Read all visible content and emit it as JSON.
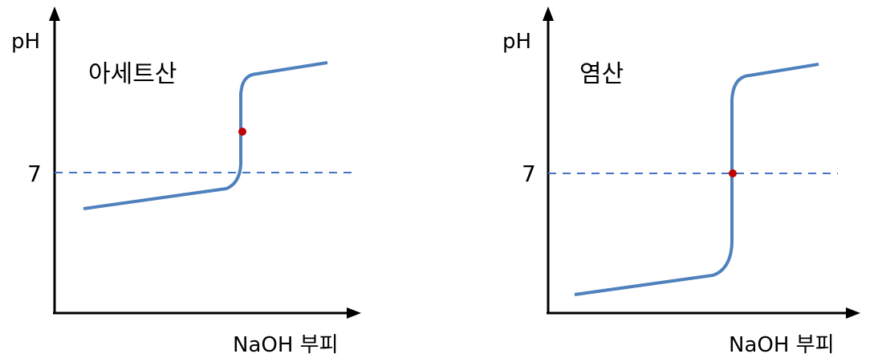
{
  "chart_data": [
    {
      "type": "line",
      "title": "아세트산",
      "ylabel": "pH",
      "xlabel": "NaOH 부피",
      "y_ticks": [
        "7"
      ],
      "reference_line": {
        "y": 7,
        "style": "dashed"
      },
      "series": [
        {
          "x": [
            0,
            0.85,
            0.9,
            0.92,
            0.95,
            1.0,
            1.5
          ],
          "y": [
            5.6,
            6.5,
            6.8,
            7.5,
            10.5,
            11.0,
            11.4
          ]
        }
      ],
      "marked_point": {
        "x": 0.92,
        "y": 8.7
      },
      "grid": false
    },
    {
      "type": "line",
      "title": "염산",
      "ylabel": "pH",
      "xlabel": "NaOH 부피",
      "y_ticks": [
        "7"
      ],
      "reference_line": {
        "y": 7,
        "style": "dashed"
      },
      "series": [
        {
          "x": [
            0,
            0.82,
            0.9,
            0.92,
            0.96,
            1.0,
            1.5
          ],
          "y": [
            0.6,
            1.5,
            2.5,
            10.0,
            10.6,
            11.0,
            11.4
          ]
        }
      ],
      "marked_point": {
        "x": 0.92,
        "y": 7
      },
      "grid": false
    }
  ]
}
